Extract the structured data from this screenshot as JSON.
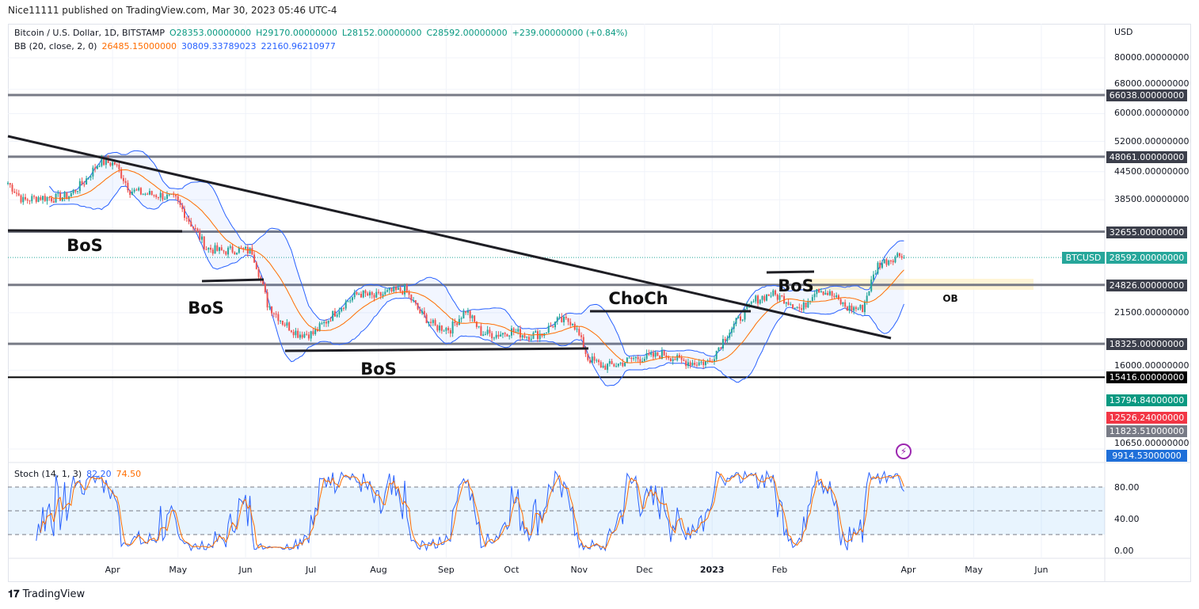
{
  "published": "Nice11111 published on TradingView.com, Mar 30, 2023 05:46 UTC-4",
  "legend": {
    "symbol": "Bitcoin / U.S. Dollar, 1D, BITSTAMP",
    "o": "O28353.00000000",
    "h": "H29170.00000000",
    "l": "L28152.00000000",
    "c": "C28592.00000000",
    "chg": "+239.00000000 (+0.84%)",
    "bb_label": "BB (20, close, 2, 0)",
    "bb_basis": "26485.15000000",
    "bb_upper": "30809.33789023",
    "bb_lower": "22160.96210977",
    "stoch_label": "Stoch (14, 1, 3)",
    "stoch_k": "82.20",
    "stoch_d": "74.50"
  },
  "price_axis": {
    "currency": "USD",
    "ticks": [
      "80000.00000000",
      "68000.00000000",
      "60000.00000000",
      "52000.00000000",
      "44500.00000000",
      "38500.00000000",
      "21500.00000000",
      "16000.00000000",
      "10650.00000000"
    ],
    "levels": [
      {
        "label": "66038.00000000",
        "value": 66038
      },
      {
        "label": "48061.00000000",
        "value": 48061
      },
      {
        "label": "32655.00000000",
        "value": 32655
      },
      {
        "label": "24826.00000000",
        "value": 24826
      },
      {
        "label": "18325.00000000",
        "value": 18325
      },
      {
        "label": "15416.00000000",
        "value": 15416
      }
    ],
    "symbol_tag": "BTCUSD",
    "last_price": "28592.00000000",
    "extra": [
      {
        "label": "13794.84000000",
        "color": "#089981"
      },
      {
        "label": "12526.24000000",
        "color": "#f23645"
      },
      {
        "label": "11823.51000000",
        "color": "#787b86"
      },
      {
        "label": "9914.53000000",
        "color": "#1e6fd9"
      }
    ]
  },
  "stoch_axis": [
    "80.00",
    "40.00",
    "0.00"
  ],
  "time_axis": [
    "Apr",
    "May",
    "Jun",
    "Jul",
    "Aug",
    "Sep",
    "Oct",
    "Nov",
    "Dec",
    "2023",
    "Feb",
    "Apr",
    "May",
    "Jun"
  ],
  "annotations": [
    "BoS",
    "BoS",
    "BoS",
    "ChoCh",
    "BoS",
    "OB"
  ],
  "brand": "TradingView",
  "colors": {
    "up": "#26a69a",
    "down": "#ef5350",
    "bb": "#2962ff",
    "basis": "#ff6d00",
    "level": "#787b86"
  },
  "chart_data": {
    "type": "candlestick",
    "title": "Bitcoin / U.S. Dollar, 1D, BITSTAMP",
    "scale": "log",
    "ylim": [
      9500,
      90000
    ],
    "x_start": "2022-02-12",
    "interval": "weekly approx closes",
    "closes": [
      42000,
      38300,
      39000,
      38800,
      39300,
      42200,
      46800,
      46400,
      40400,
      39700,
      39400,
      38500,
      34000,
      30000,
      29500,
      29800,
      29500,
      22500,
      20500,
      19300,
      19300,
      20800,
      22500,
      23800,
      23300,
      23900,
      24200,
      21500,
      20000,
      19800,
      21800,
      19400,
      19200,
      19600,
      19100,
      19300,
      20600,
      20600,
      17000,
      16300,
      16500,
      17000,
      17100,
      17400,
      16800,
      16600,
      16700,
      19000,
      21000,
      23000,
      23700,
      23000,
      21800,
      24500,
      23500,
      22000,
      22000,
      27500,
      28592
    ],
    "horizontal_levels": [
      66038,
      48061,
      32655,
      24826,
      18325,
      15416
    ],
    "indicators": [
      "BB(20,close,2)",
      "Stoch(14,1,3)"
    ]
  }
}
